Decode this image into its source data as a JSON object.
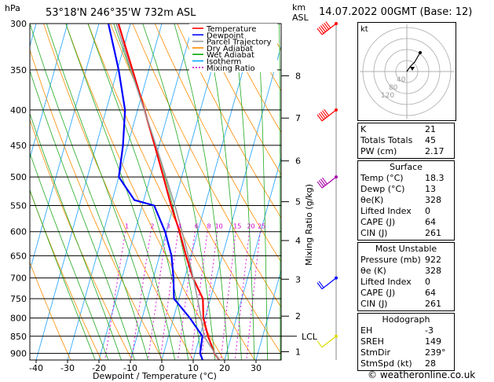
{
  "header": {
    "hpa_label": "hPa",
    "location": "53°18'N  246°35'W  732m  ASL",
    "km_label": "km",
    "asl_label": "ASL",
    "datetime": "14.07.2022  00GMT  (Base: 12)"
  },
  "legend": [
    {
      "label": "Temperature",
      "color": "#ff0000"
    },
    {
      "label": "Dewpoint",
      "color": "#0000ff"
    },
    {
      "label": "Parcel Trajectory",
      "color": "#999999"
    },
    {
      "label": "Dry Adiabat",
      "color": "#ff8800"
    },
    {
      "label": "Wet Adiabat",
      "color": "#00aa00"
    },
    {
      "label": "Isotherm",
      "color": "#00aaff"
    },
    {
      "label": "Mixing Ratio",
      "color": "#cc00cc"
    }
  ],
  "chart_data": {
    "type": "line",
    "subtype": "skew-T log-P diagram",
    "xlabel": "Dewpoint / Temperature (°C)",
    "ylabel": "",
    "xlim": [
      -42,
      38
    ],
    "ylim_pressure_hpa": [
      920,
      300
    ],
    "pressure_ticks": [
      300,
      350,
      400,
      450,
      500,
      550,
      600,
      650,
      700,
      750,
      800,
      850,
      900
    ],
    "temp_ticks": [
      -40,
      -30,
      -20,
      -10,
      0,
      10,
      20,
      30
    ],
    "temp_tick_labels": [
      "-40",
      "-30",
      "-20",
      "-10",
      "0",
      "10",
      "20",
      "30"
    ],
    "km_ticks": [
      {
        "km": "1",
        "p": 895
      },
      {
        "km": "2",
        "p": 795
      },
      {
        "km": "3",
        "p": 703
      },
      {
        "km": "4",
        "p": 618
      },
      {
        "km": "5",
        "p": 543
      },
      {
        "km": "6",
        "p": 474
      },
      {
        "km": "7",
        "p": 411
      },
      {
        "km": "8",
        "p": 357
      }
    ],
    "lcl": {
      "label": "LCL",
      "p": 850
    },
    "mixing_ratio_axis_label": "Mixing Ratio (g/kg)",
    "mixing_ratio_labels": [
      "1",
      "2",
      "3",
      "4",
      "6",
      "8",
      "10",
      "15",
      "20",
      "25"
    ],
    "mixing_ratio_values": [
      1,
      2,
      3,
      4,
      6,
      8,
      10,
      15,
      20,
      25
    ],
    "series": [
      {
        "name": "Temperature",
        "color": "#ff0000",
        "points": [
          [
            920,
            18.3
          ],
          [
            900,
            16.2
          ],
          [
            850,
            12.6
          ],
          [
            800,
            9.5
          ],
          [
            750,
            7.6
          ],
          [
            700,
            2.6
          ],
          [
            650,
            -1.6
          ],
          [
            600,
            -5.8
          ],
          [
            550,
            -10.8
          ],
          [
            500,
            -15.8
          ],
          [
            450,
            -21.4
          ],
          [
            400,
            -27.8
          ],
          [
            350,
            -35.2
          ],
          [
            300,
            -43.8
          ]
        ]
      },
      {
        "name": "Dewpoint",
        "color": "#0000ff",
        "points": [
          [
            920,
            13.0
          ],
          [
            900,
            11.6
          ],
          [
            850,
            10.8
          ],
          [
            800,
            5.2
          ],
          [
            750,
            -1.6
          ],
          [
            700,
            -3.6
          ],
          [
            650,
            -6.2
          ],
          [
            600,
            -10.4
          ],
          [
            550,
            -16.2
          ],
          [
            540,
            -23.0
          ],
          [
            500,
            -30.0
          ],
          [
            450,
            -31.5
          ],
          [
            400,
            -34.0
          ],
          [
            350,
            -39.6
          ],
          [
            300,
            -47.0
          ]
        ]
      },
      {
        "name": "Parcel Trajectory",
        "color": "#999999",
        "points": [
          [
            920,
            18.3
          ],
          [
            850,
            11.3
          ],
          [
            800,
            8.8
          ],
          [
            750,
            5.9
          ],
          [
            700,
            2.7
          ],
          [
            650,
            -0.9
          ],
          [
            600,
            -5.0
          ],
          [
            550,
            -9.6
          ],
          [
            500,
            -15.0
          ],
          [
            450,
            -21.0
          ],
          [
            400,
            -27.9
          ],
          [
            350,
            -35.7
          ],
          [
            300,
            -44.5
          ]
        ]
      }
    ]
  },
  "wind": {
    "speeds_kt": [
      60,
      50,
      35,
      20,
      10
    ],
    "colors": [
      "#ff0000",
      "#ff0000",
      "#aa00aa",
      "#0000ff",
      "#dddd00"
    ]
  },
  "hodograph": {
    "label": "kt",
    "ring_labels": [
      "40",
      "80",
      "120"
    ],
    "trace": [
      [
        0,
        0
      ],
      [
        2,
        3
      ],
      [
        5,
        7
      ],
      [
        10,
        12
      ],
      [
        14,
        19
      ],
      [
        17,
        24
      ]
    ]
  },
  "indices": [
    {
      "label": "K",
      "value": "21"
    },
    {
      "label": "Totals Totals",
      "value": "45"
    },
    {
      "label": "PW (cm)",
      "value": "2.17"
    }
  ],
  "surface": {
    "title": "Surface",
    "rows": [
      {
        "label": "Temp (°C)",
        "value": "18.3"
      },
      {
        "label": "Dewp (°C)",
        "value": "13"
      },
      {
        "label": "θe(K)",
        "value": "328"
      },
      {
        "label": "Lifted Index",
        "value": "0"
      },
      {
        "label": "CAPE (J)",
        "value": "64"
      },
      {
        "label": "CIN (J)",
        "value": "261"
      }
    ]
  },
  "most_unstable": {
    "title": "Most Unstable",
    "rows": [
      {
        "label": "Pressure (mb)",
        "value": "922"
      },
      {
        "label": "θe (K)",
        "value": "328"
      },
      {
        "label": "Lifted Index",
        "value": "0"
      },
      {
        "label": "CAPE (J)",
        "value": "64"
      },
      {
        "label": "CIN (J)",
        "value": "261"
      }
    ]
  },
  "hodograph_table": {
    "title": "Hodograph",
    "rows": [
      {
        "label": "EH",
        "value": "-3"
      },
      {
        "label": "SREH",
        "value": "149"
      },
      {
        "label": "StmDir",
        "value": "239°"
      },
      {
        "label": "StmSpd (kt)",
        "value": "28"
      }
    ]
  },
  "copyright": "© weatheronline.co.uk"
}
